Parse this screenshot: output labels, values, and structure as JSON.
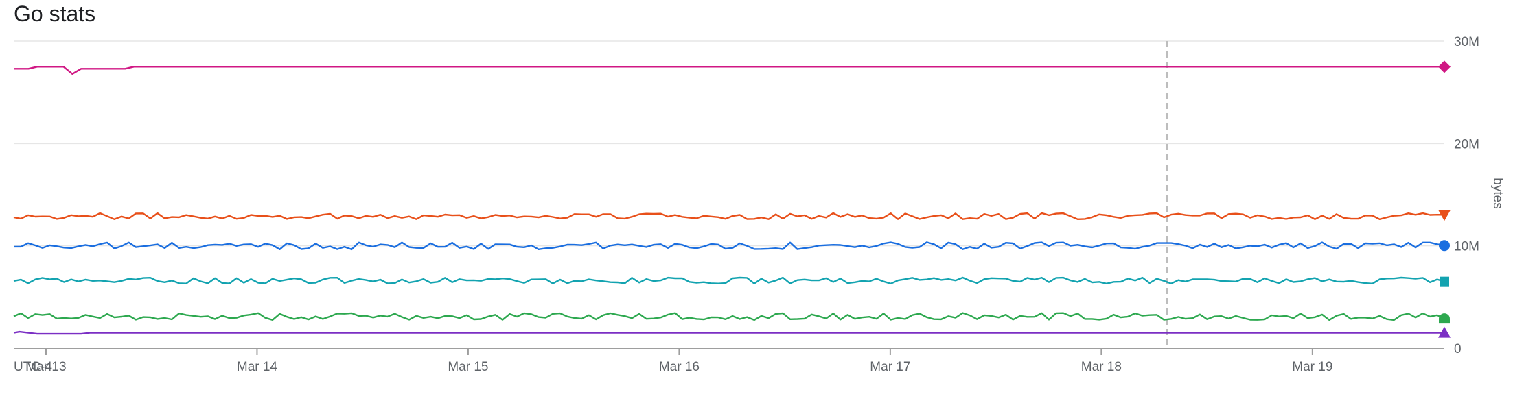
{
  "chart_data": {
    "type": "line",
    "title": "Go stats",
    "ylabel": "bytes",
    "timezone_label": "UTC-4",
    "ylim": [
      0,
      30000000
    ],
    "y_ticks": [
      {
        "value": 0,
        "label": "0"
      },
      {
        "value": 10000000,
        "label": "10M"
      },
      {
        "value": 20000000,
        "label": "20M"
      },
      {
        "value": 30000000,
        "label": "30M"
      }
    ],
    "xlim": [
      "2024-03-12T20:20",
      "2024-03-19T15:00"
    ],
    "x_ticks": [
      {
        "value": "2024-03-13T00:00",
        "label": "Mar 13"
      },
      {
        "value": "2024-03-14T00:00",
        "label": "Mar 14"
      },
      {
        "value": "2024-03-15T00:00",
        "label": "Mar 15"
      },
      {
        "value": "2024-03-16T00:00",
        "label": "Mar 16"
      },
      {
        "value": "2024-03-17T00:00",
        "label": "Mar 17"
      },
      {
        "value": "2024-03-18T00:00",
        "label": "Mar 18"
      },
      {
        "value": "2024-03-19T00:00",
        "label": "Mar 19"
      }
    ],
    "cursor_x": "2024-03-18T07:30",
    "grid": true,
    "series": [
      {
        "color": "#d01884",
        "marker": "diamond",
        "x": [
          "2024-03-12T20:20",
          "2024-03-12T22:00",
          "2024-03-12T23:00",
          "2024-03-13T02:00",
          "2024-03-13T03:00",
          "2024-03-13T04:00",
          "2024-03-13T09:00",
          "2024-03-13T10:00",
          "2024-03-13T11:00",
          "2024-03-19T15:00"
        ],
        "values": [
          27300000,
          27300000,
          27500000,
          27500000,
          26800000,
          27300000,
          27300000,
          27500000,
          27500000,
          27500000
        ]
      },
      {
        "color": "#e8501a",
        "marker": "triangle-down",
        "base": 12900000,
        "amplitude": 300000,
        "points": 200
      },
      {
        "color": "#1a6ee0",
        "marker": "circle",
        "base": 10000000,
        "amplitude": 350000,
        "points": 200
      },
      {
        "color": "#13a3b0",
        "marker": "square",
        "base": 6600000,
        "amplitude": 300000,
        "points": 200
      },
      {
        "color": "#2da84f",
        "marker": "semicircle",
        "base": 3100000,
        "amplitude": 350000,
        "points": 200
      },
      {
        "color": "#7b2fc4",
        "marker": "triangle-up",
        "x": [
          "2024-03-12T20:20",
          "2024-03-12T21:00",
          "2024-03-12T22:00",
          "2024-03-12T23:00",
          "2024-03-13T04:00",
          "2024-03-13T05:00",
          "2024-03-19T15:00"
        ],
        "values": [
          1500000,
          1600000,
          1500000,
          1400000,
          1400000,
          1500000,
          1500000
        ]
      }
    ]
  }
}
